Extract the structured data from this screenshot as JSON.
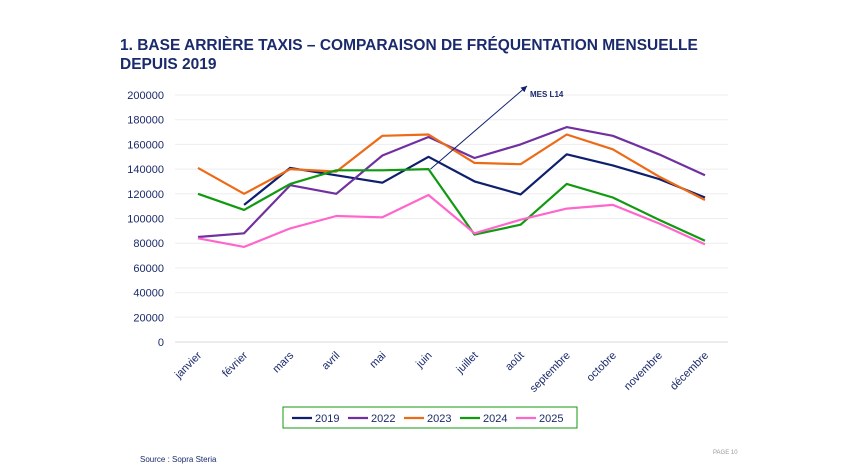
{
  "title": "1. BASE ARRIÈRE TAXIS – COMPARAISON DE FRÉQUENTATION MENSUELLE DEPUIS 2019",
  "source": "Source : Sopra Steria",
  "page": "PAGE 10",
  "chart_data": {
    "type": "line",
    "categories": [
      "janvier",
      "février",
      "mars",
      "avril",
      "mai",
      "juin",
      "juillet",
      "août",
      "septembre",
      "octobre",
      "novembre",
      "décembre"
    ],
    "ylim": [
      0,
      200000
    ],
    "yticks": [
      0,
      20000,
      40000,
      60000,
      80000,
      100000,
      120000,
      140000,
      160000,
      180000,
      200000
    ],
    "grid": true,
    "legend": "bottom",
    "annotation": {
      "text": "MES L14",
      "from": "juin"
    },
    "series": [
      {
        "name": "2019",
        "color": "#0d1f6e",
        "values": [
          null,
          111000,
          141000,
          135000,
          129000,
          150000,
          130000,
          119500,
          152000,
          143000,
          132000,
          117000
        ]
      },
      {
        "name": "2022",
        "color": "#7030a0",
        "values": [
          85000,
          88000,
          127000,
          120000,
          151000,
          166000,
          149000,
          160000,
          174000,
          167000,
          152000,
          135000
        ]
      },
      {
        "name": "2023",
        "color": "#ed6a16",
        "values": [
          141000,
          120000,
          140000,
          138000,
          167000,
          168000,
          145000,
          144000,
          168000,
          156000,
          134000,
          115000
        ]
      },
      {
        "name": "2024",
        "color": "#119911",
        "values": [
          120000,
          107000,
          128000,
          139000,
          139000,
          140000,
          87000,
          95000,
          128000,
          117000,
          99000,
          82000
        ]
      },
      {
        "name": "2025",
        "color": "#ff66cc",
        "values": [
          84000,
          77000,
          92000,
          102000,
          101000,
          119000,
          88000,
          99000,
          108000,
          111000,
          96000,
          79000
        ]
      }
    ]
  }
}
